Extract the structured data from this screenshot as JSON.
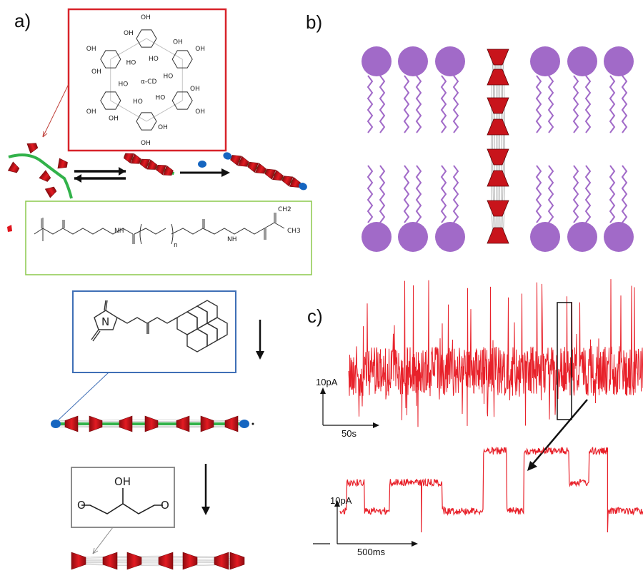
{
  "panels": {
    "a": {
      "label": "a)"
    },
    "b": {
      "label": "b)"
    },
    "c": {
      "label": "c)"
    }
  },
  "cyclodextrin": {
    "center_label": "α-CD",
    "group_label": "OH",
    "inner_group_label": "HO"
  },
  "peg_linker": {
    "repeat_subscript": "n",
    "nh_label": "NH",
    "ch3_label": "CH3",
    "ch2_label": "CH2"
  },
  "glycerol_linker": {
    "oh_label": "OH"
  },
  "traces": {
    "top": {
      "scale_current": "10pA",
      "scale_time": "50s"
    },
    "bottom": {
      "scale_current": "10pA",
      "scale_time": "500ms"
    }
  },
  "colors": {
    "cd_red": "#e0141c",
    "polymer_green": "#32b24a",
    "endcap_blue": "#1565c0",
    "lipid_purple": "#a16ac8",
    "trace_red": "#e8212a",
    "box_red": "#d8232a",
    "box_green": "#8cc84b",
    "box_blue": "#3f6fb6",
    "box_gray": "#8c8c8c"
  }
}
